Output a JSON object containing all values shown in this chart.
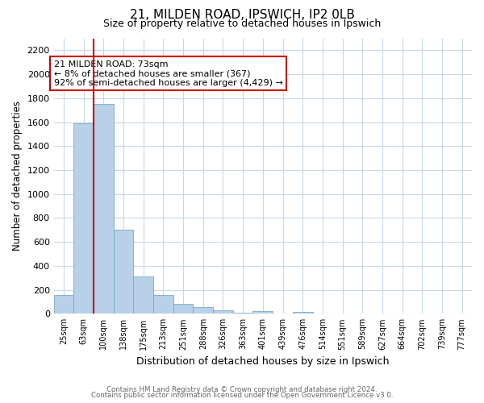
{
  "title1": "21, MILDEN ROAD, IPSWICH, IP2 0LB",
  "title2": "Size of property relative to detached houses in Ipswich",
  "xlabel": "Distribution of detached houses by size in Ipswich",
  "ylabel": "Number of detached properties",
  "categories": [
    "25sqm",
    "63sqm",
    "100sqm",
    "138sqm",
    "175sqm",
    "213sqm",
    "251sqm",
    "288sqm",
    "326sqm",
    "363sqm",
    "401sqm",
    "439sqm",
    "476sqm",
    "514sqm",
    "551sqm",
    "589sqm",
    "627sqm",
    "664sqm",
    "702sqm",
    "739sqm",
    "777sqm"
  ],
  "values": [
    160,
    1590,
    1750,
    700,
    310,
    160,
    85,
    55,
    30,
    10,
    20,
    0,
    15,
    0,
    0,
    0,
    0,
    0,
    0,
    0,
    0
  ],
  "bar_color": "#b8d0e8",
  "bar_edge_color": "#7aaac8",
  "ylim": [
    0,
    2300
  ],
  "yticks": [
    0,
    200,
    400,
    600,
    800,
    1000,
    1200,
    1400,
    1600,
    1800,
    2000,
    2200
  ],
  "vline_color": "#cc0000",
  "annotation_text": "21 MILDEN ROAD: 73sqm\n← 8% of detached houses are smaller (367)\n92% of semi-detached houses are larger (4,429) →",
  "annotation_box_color": "#ffffff",
  "annotation_box_edge": "#cc0000",
  "footer1": "Contains HM Land Registry data © Crown copyright and database right 2024.",
  "footer2": "Contains public sector information licensed under the Open Government Licence v3.0.",
  "background_color": "#ffffff",
  "grid_color": "#c8d8e8"
}
